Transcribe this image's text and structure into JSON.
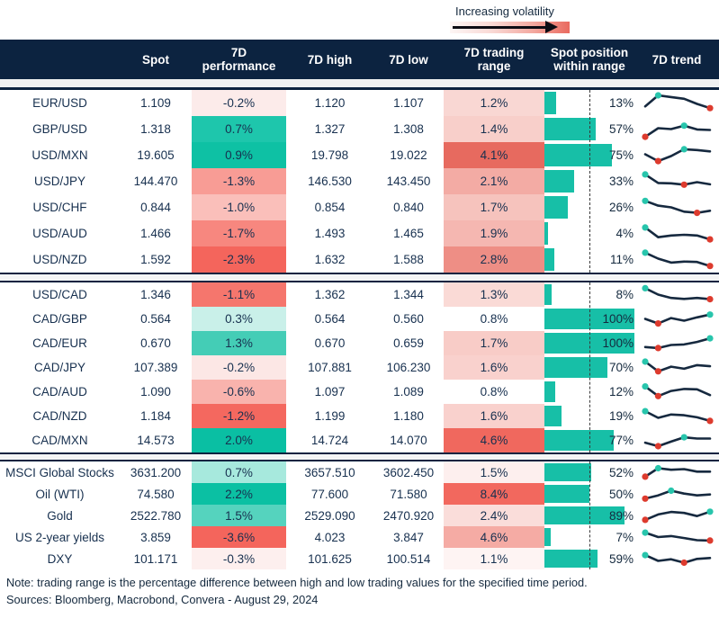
{
  "legend": {
    "label": "Increasing volatility"
  },
  "footer": {
    "note": "Note: trading range is the percentage difference between high and low trading values for the specified time period.",
    "sources": "Sources: Bloomberg, Macrobond, Convera - August 29, 2024"
  },
  "colors": {
    "header_bg": "#0C2340",
    "header_text": "#FFFFFF",
    "body_text": "#17304F",
    "bar_teal": "#17BFA7",
    "spark_line": "#16293F",
    "spark_high_dot": "#28C5AC",
    "spark_low_dot": "#DD3B2E",
    "legend_gradient_end": "#E96A5F",
    "gap_band": "#EFF1F2"
  },
  "chart_data": {
    "type": "table",
    "columns": [
      {
        "line1": "",
        "line2": ""
      },
      {
        "line1": "Spot",
        "line2": ""
      },
      {
        "line1": "7D",
        "line2": "performance"
      },
      {
        "line1": "7D high",
        "line2": ""
      },
      {
        "line1": "7D low",
        "line2": ""
      },
      {
        "line1": "7D trading",
        "line2": "range"
      },
      {
        "line1": "Spot position",
        "line2": "within range"
      },
      {
        "line1": "7D trend",
        "line2": ""
      }
    ],
    "position_midline_pct": 50,
    "blocks": [
      {
        "rows": [
          {
            "label": "EUR/USD",
            "spot": "1.109",
            "perf": "-0.2%",
            "perf_bg": "#FCEBEA",
            "high": "1.120",
            "low": "1.107",
            "range": "1.2%",
            "range_bg": "#F9D7D3",
            "position": 13,
            "position_label": "13%",
            "trend": [
              30,
              95,
              85,
              75,
              45,
              20
            ]
          },
          {
            "label": "GBP/USD",
            "spot": "1.318",
            "perf": "0.7%",
            "perf_bg": "#1EC6AC",
            "high": "1.327",
            "low": "1.308",
            "range": "1.4%",
            "range_bg": "#F8CFCA",
            "position": 57,
            "position_label": "57%",
            "trend": [
              5,
              55,
              50,
              70,
              48,
              45
            ]
          },
          {
            "label": "USD/MXN",
            "spot": "19.605",
            "perf": "0.9%",
            "perf_bg": "#0EC1A4",
            "high": "19.798",
            "low": "19.022",
            "range": "4.1%",
            "range_bg": "#E76A5F",
            "position": 75,
            "position_label": "75%",
            "trend": [
              55,
              15,
              45,
              85,
              80,
              72
            ]
          },
          {
            "label": "USD/JPY",
            "spot": "144.470",
            "perf": "-1.3%",
            "perf_bg": "#F89C95",
            "high": "146.530",
            "low": "143.450",
            "range": "2.1%",
            "range_bg": "#F3ABA4",
            "position": 33,
            "position_label": "33%",
            "trend": [
              90,
              40,
              38,
              30,
              45,
              32
            ]
          },
          {
            "label": "USD/CHF",
            "spot": "0.844",
            "perf": "-1.0%",
            "perf_bg": "#FABFBA",
            "high": "0.854",
            "low": "0.840",
            "range": "1.7%",
            "range_bg": "#F6C3BD",
            "position": 26,
            "position_label": "26%",
            "trend": [
              88,
              60,
              50,
              25,
              18,
              30
            ]
          },
          {
            "label": "USD/AUD",
            "spot": "1.466",
            "perf": "-1.7%",
            "perf_bg": "#F7877F",
            "high": "1.493",
            "low": "1.465",
            "range": "1.9%",
            "range_bg": "#F5B7B1",
            "position": 4,
            "position_label": "4%",
            "trend": [
              85,
              28,
              38,
              42,
              38,
              15
            ]
          },
          {
            "label": "USD/NZD",
            "spot": "1.592",
            "perf": "-2.3%",
            "perf_bg": "#F4655C",
            "high": "1.632",
            "low": "1.588",
            "range": "2.8%",
            "range_bg": "#EE8E85",
            "position": 11,
            "position_label": "11%",
            "trend": [
              90,
              55,
              32,
              38,
              36,
              12
            ]
          }
        ]
      },
      {
        "rows": [
          {
            "label": "USD/CAD",
            "spot": "1.346",
            "perf": "-1.1%",
            "perf_bg": "#F5766D",
            "high": "1.362",
            "low": "1.344",
            "range": "1.3%",
            "range_bg": "#FADAD6",
            "position": 8,
            "position_label": "8%",
            "trend": [
              92,
              50,
              28,
              22,
              28,
              20
            ]
          },
          {
            "label": "CAD/GBP",
            "spot": "0.564",
            "perf": "0.3%",
            "perf_bg": "#C9F0E9",
            "high": "0.564",
            "low": "0.560",
            "range": "0.8%",
            "range_bg": "#FFFFFF",
            "position": 100,
            "position_label": "100%",
            "trend": [
              50,
              20,
              55,
              38,
              60,
              78
            ]
          },
          {
            "label": "CAD/EUR",
            "spot": "0.670",
            "perf": "1.3%",
            "perf_bg": "#44CDB6",
            "high": "0.670",
            "low": "0.659",
            "range": "1.7%",
            "range_bg": "#F8CCC7",
            "position": 100,
            "position_label": "100%",
            "trend": [
              25,
              18,
              38,
              42,
              58,
              82
            ]
          },
          {
            "label": "CAD/JPY",
            "spot": "107.389",
            "perf": "-0.2%",
            "perf_bg": "#FCE7E5",
            "high": "107.881",
            "low": "106.230",
            "range": "1.6%",
            "range_bg": "#F9D1CD",
            "position": 70,
            "position_label": "70%",
            "trend": [
              88,
              25,
              55,
              42,
              65,
              58
            ]
          },
          {
            "label": "CAD/AUD",
            "spot": "1.090",
            "perf": "-0.6%",
            "perf_bg": "#F9B3AD",
            "high": "1.097",
            "low": "1.089",
            "range": "0.8%",
            "range_bg": "#FFFFFF",
            "position": 12,
            "position_label": "12%",
            "trend": [
              85,
              22,
              55,
              68,
              66,
              28
            ]
          },
          {
            "label": "CAD/NZD",
            "spot": "1.184",
            "perf": "-1.2%",
            "perf_bg": "#F4685F",
            "high": "1.199",
            "low": "1.180",
            "range": "1.6%",
            "range_bg": "#F9D1CD",
            "position": 19,
            "position_label": "19%",
            "trend": [
              82,
              38,
              60,
              55,
              42,
              18
            ]
          },
          {
            "label": "CAD/MXN",
            "spot": "14.573",
            "perf": "2.0%",
            "perf_bg": "#0ABFA3",
            "high": "14.724",
            "low": "14.070",
            "range": "4.6%",
            "range_bg": "#F0685E",
            "position": 77,
            "position_label": "77%",
            "trend": [
              35,
              12,
              42,
              70,
              62,
              62
            ]
          }
        ]
      },
      {
        "rows": [
          {
            "label": "MSCI Global Stocks",
            "spot": "3631.200",
            "perf": "0.7%",
            "perf_bg": "#A7E9DD",
            "high": "3657.510",
            "low": "3602.450",
            "range": "1.5%",
            "range_bg": "#FDEFEE",
            "position": 52,
            "position_label": "52%",
            "trend": [
              15,
              82,
              70,
              75,
              55,
              55
            ]
          },
          {
            "label": "Oil (WTI)",
            "spot": "74.580",
            "perf": "2.2%",
            "perf_bg": "#0BC0A3",
            "high": "77.600",
            "low": "71.580",
            "range": "8.4%",
            "range_bg": "#F2685E",
            "position": 50,
            "position_label": "50%",
            "trend": [
              12,
              38,
              75,
              52,
              38,
              45
            ]
          },
          {
            "label": "Gold",
            "spot": "2522.780",
            "perf": "1.5%",
            "perf_bg": "#55D3BE",
            "high": "2529.090",
            "low": "2470.920",
            "range": "2.4%",
            "range_bg": "#FADDDA",
            "position": 89,
            "position_label": "89%",
            "trend": [
              15,
              58,
              78,
              70,
              45,
              80
            ]
          },
          {
            "label": "US 2-year yields",
            "spot": "3.859",
            "perf": "-3.6%",
            "perf_bg": "#F4655C",
            "high": "4.023",
            "low": "3.847",
            "range": "4.6%",
            "range_bg": "#F5ABA4",
            "position": 7,
            "position_label": "7%",
            "trend": [
              85,
              50,
              58,
              42,
              25,
              22
            ]
          },
          {
            "label": "DXY",
            "spot": "101.171",
            "perf": "-0.3%",
            "perf_bg": "#FDEFEE",
            "high": "101.625",
            "low": "100.514",
            "range": "1.1%",
            "range_bg": "#FEF4F3",
            "position": 59,
            "position_label": "59%",
            "trend": [
              78,
              32,
              45,
              18,
              48,
              55
            ]
          }
        ]
      }
    ]
  }
}
